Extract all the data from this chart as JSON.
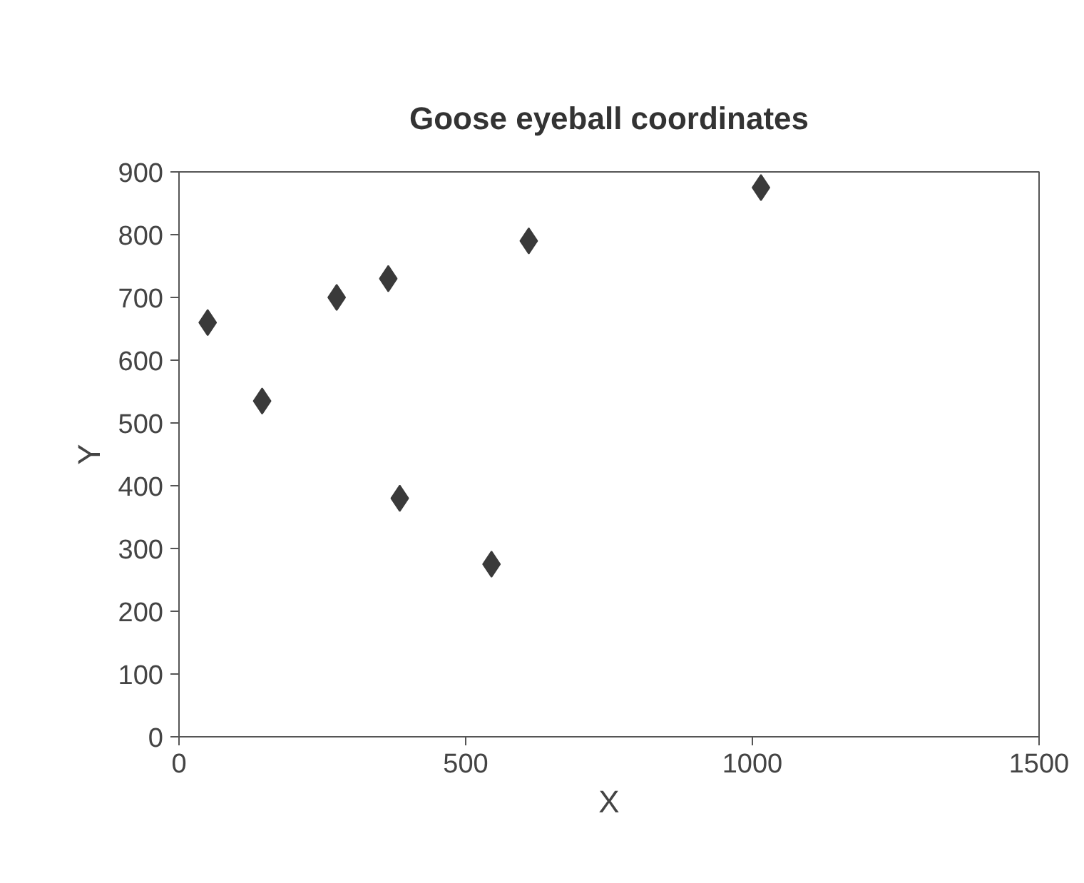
{
  "chart_data": {
    "type": "scatter",
    "title": "Goose eyeball coordinates",
    "xlabel": "X",
    "ylabel": "Y",
    "x": [
      50,
      145,
      275,
      365,
      385,
      545,
      610,
      1015
    ],
    "values": [
      660,
      535,
      700,
      730,
      380,
      275,
      790,
      875
    ],
    "color": "#3a3a3a",
    "marker": "diamond",
    "xlim": [
      0,
      1500
    ],
    "xticks": [
      0,
      500,
      1000,
      1500
    ],
    "ylim": [
      0,
      900
    ],
    "yticks": [
      0,
      100,
      200,
      300,
      400,
      500,
      600,
      700,
      800,
      900
    ],
    "grid": false
  }
}
